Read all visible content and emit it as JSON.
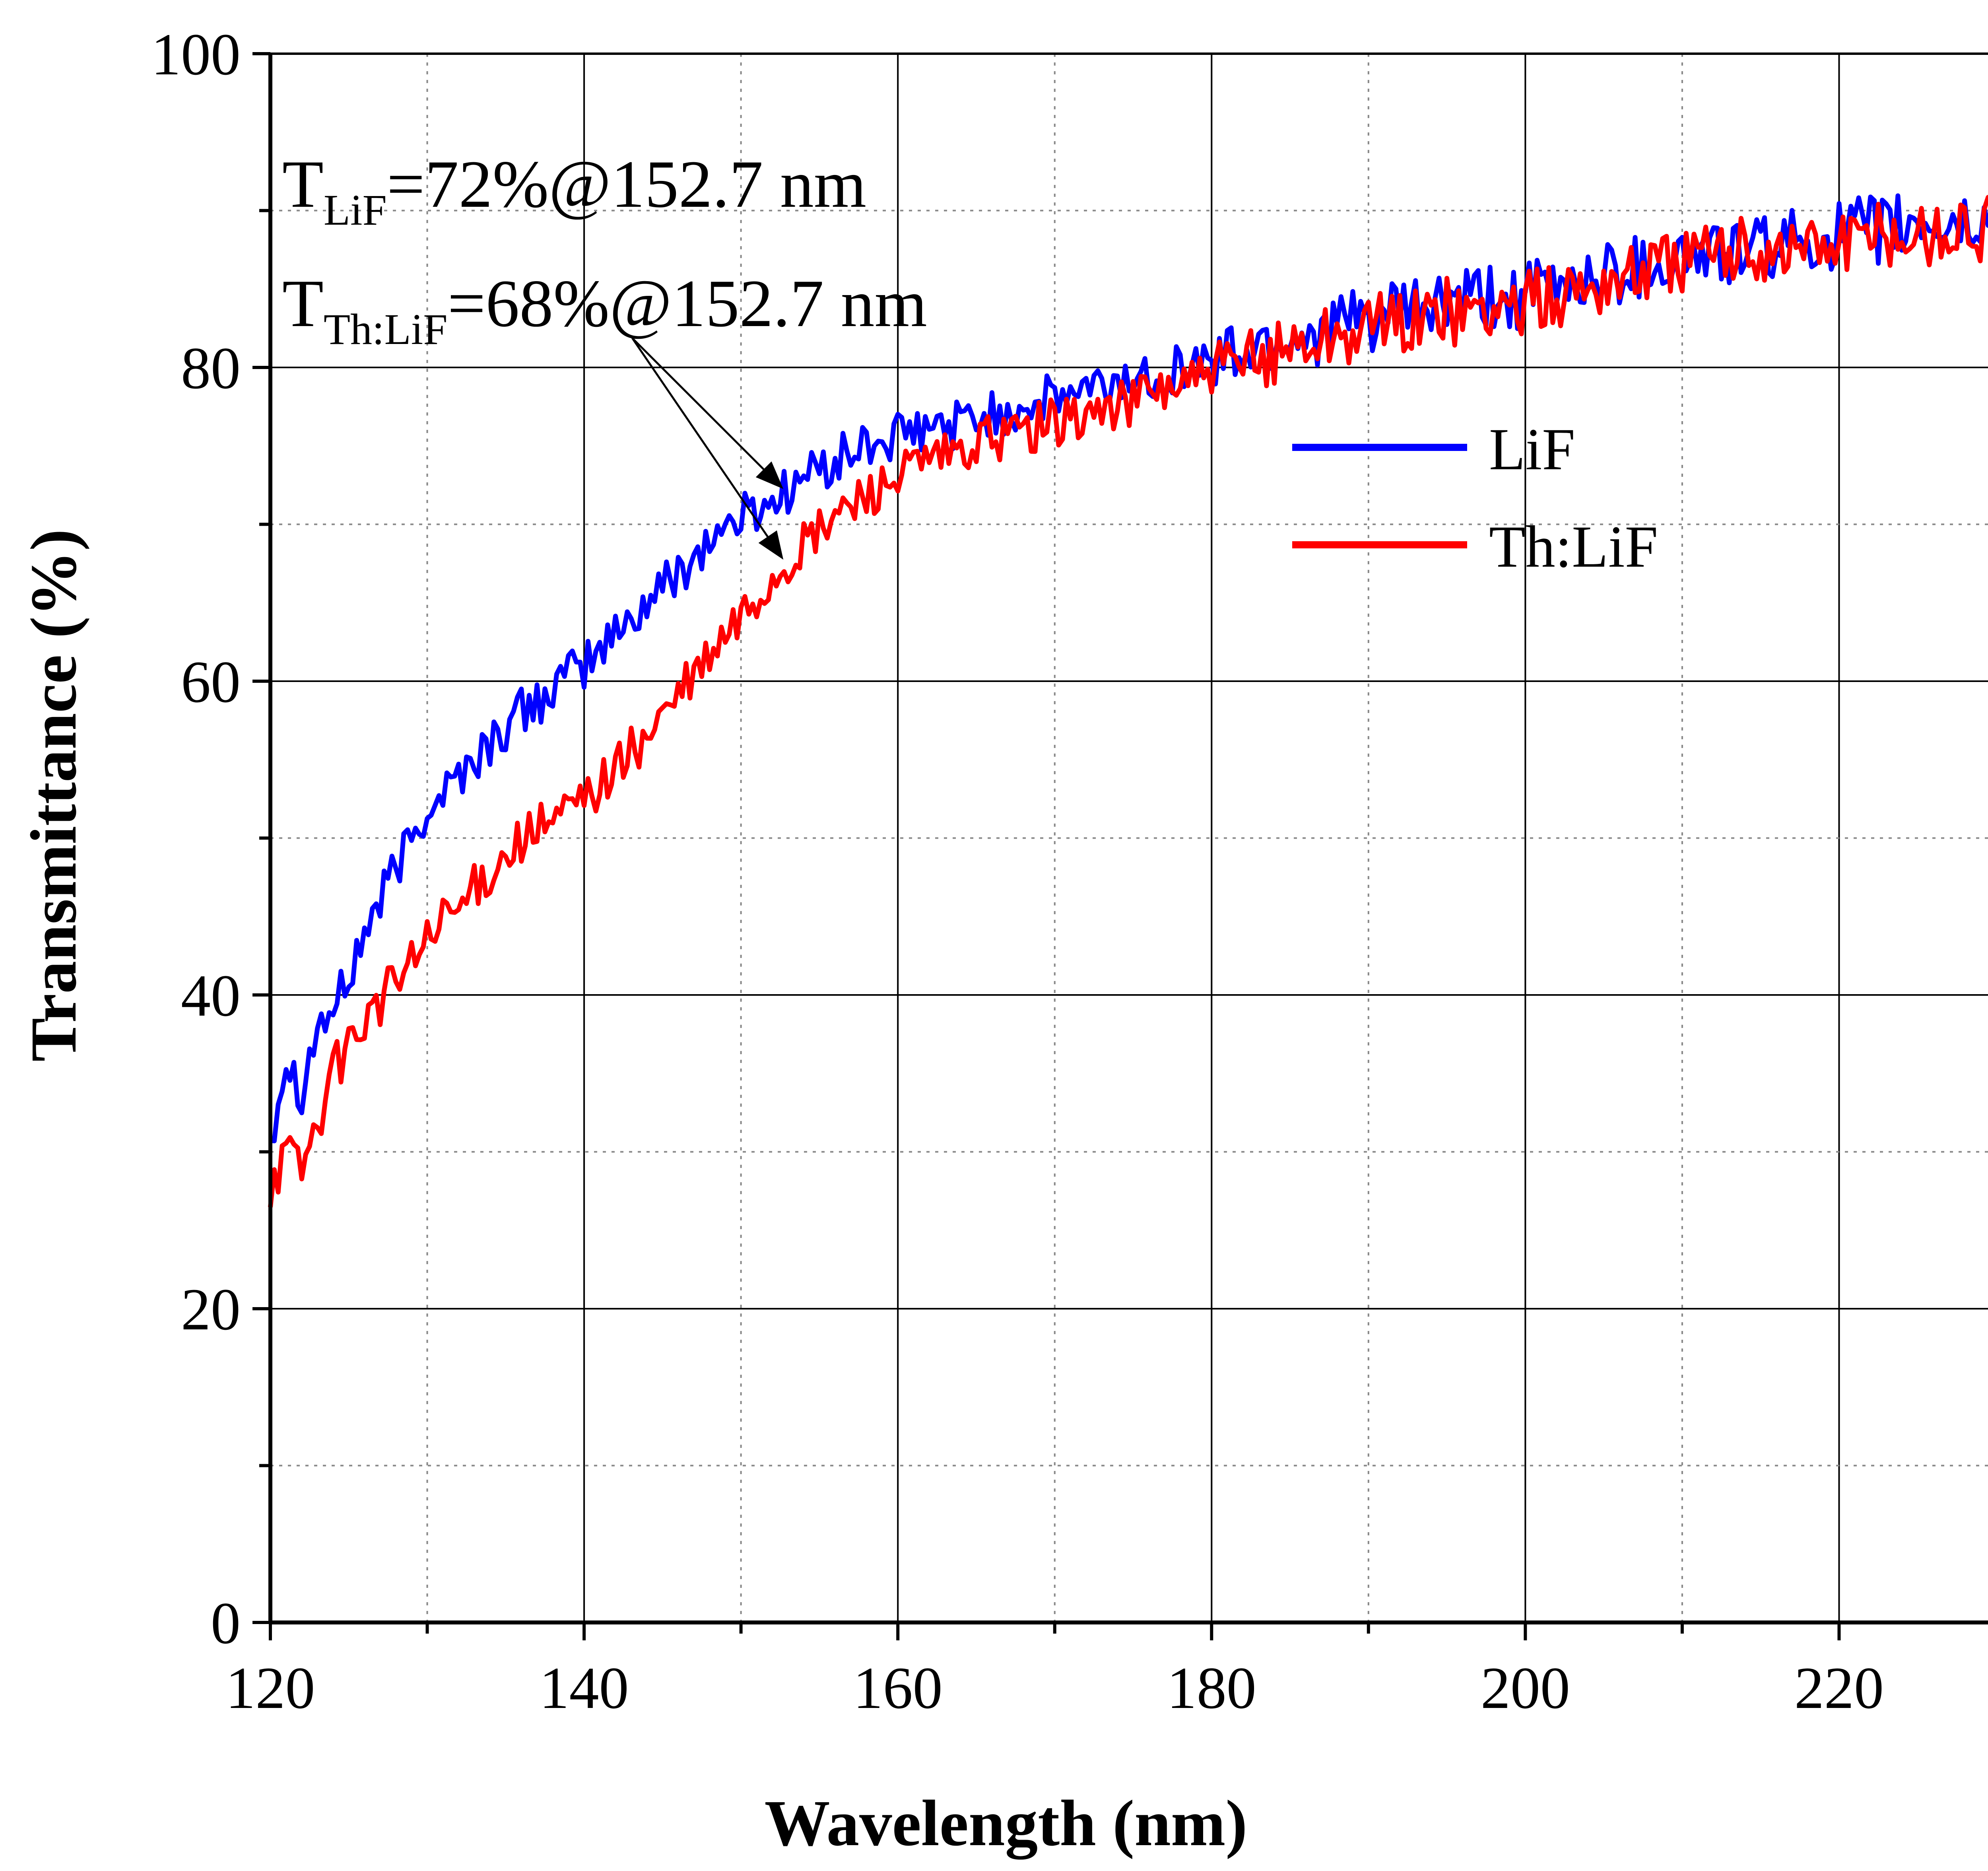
{
  "chart_data": {
    "type": "line",
    "xlabel": "Wavelength (nm)",
    "ylabel": "Transmittance (%)",
    "xlim": [
      120,
      230
    ],
    "ylim": [
      0,
      100
    ],
    "x_ticks": [
      "120",
      "140",
      "160",
      "180",
      "200",
      "220"
    ],
    "y_ticks": [
      "0",
      "20",
      "40",
      "60",
      "80",
      "100"
    ],
    "grid": true,
    "legend_position": "right, upper-middle",
    "series": [
      {
        "name": "LiF",
        "color": "#0000ff",
        "x": [
          120,
          121,
          122,
          123,
          124,
          125,
          126,
          127,
          128,
          129,
          130,
          132,
          134,
          136,
          138,
          140,
          142,
          144,
          146,
          148,
          150,
          152,
          154,
          156,
          158,
          160,
          162,
          164,
          166,
          168,
          170,
          172,
          174,
          176,
          178,
          180,
          182,
          185,
          190,
          195,
          200,
          205,
          210,
          215,
          220,
          225,
          230
        ],
        "values": [
          31,
          36,
          34,
          38,
          39,
          41,
          44,
          46,
          48,
          50,
          52,
          54,
          56,
          58,
          59.5,
          61,
          63,
          65,
          67,
          69,
          70.5,
          71.5,
          73,
          74,
          75,
          75.5,
          76,
          76.5,
          77,
          77.5,
          78,
          78.5,
          79,
          79.5,
          80,
          80.5,
          81,
          82,
          83,
          84,
          84.5,
          86,
          87,
          87.5,
          88.5,
          89,
          89
        ]
      },
      {
        "name": "Th:LiF",
        "color": "#ff0000",
        "x": [
          120,
          121,
          122,
          123,
          124,
          125,
          126,
          127,
          128,
          129,
          130,
          132,
          134,
          136,
          138,
          140,
          142,
          144,
          146,
          148,
          150,
          152,
          154,
          156,
          158,
          160,
          162,
          164,
          166,
          168,
          170,
          172,
          174,
          176,
          178,
          180,
          182,
          185,
          190,
          195,
          200,
          205,
          210,
          215,
          220,
          225,
          230
        ],
        "values": [
          28,
          30,
          29,
          32,
          35,
          37,
          38.5,
          39.5,
          41,
          42,
          43.5,
          45.5,
          48,
          50,
          51,
          52.5,
          54.5,
          56.5,
          59,
          61.5,
          64,
          66.5,
          68.5,
          70.5,
          72,
          73,
          74,
          74.5,
          75.5,
          76,
          76.5,
          77,
          77.5,
          78.5,
          79,
          79.5,
          80,
          81.5,
          82.5,
          83.5,
          84,
          85.5,
          87,
          87.5,
          88,
          88.5,
          89
        ]
      }
    ],
    "annotations": [
      {
        "main": "T",
        "sub": "LiF",
        "rest": "=72%@152.7 nm",
        "target_x": 152.7,
        "target_y": 72
      },
      {
        "main": "T",
        "sub": "Th:LiF",
        "rest": "=68%@152.7 nm",
        "target_x": 152.7,
        "target_y": 68
      }
    ]
  }
}
